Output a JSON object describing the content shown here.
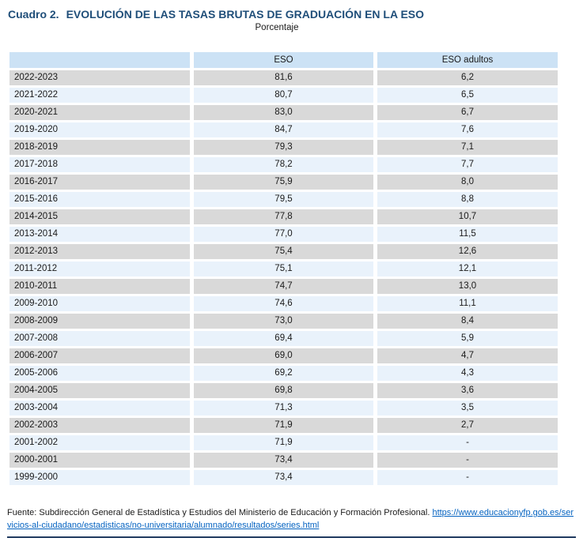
{
  "page": {
    "title_label": "Cuadro 2.",
    "title_text": "EVOLUCIÓN DE LAS TASAS BRUTAS DE GRADUACIÓN EN LA ESO",
    "subtitle": "Porcentaje"
  },
  "table": {
    "headers": [
      "",
      "ESO",
      "ESO adultos"
    ],
    "rows": [
      [
        "2022-2023",
        "81,6",
        "6,2"
      ],
      [
        "2021-2022",
        "80,7",
        "6,5"
      ],
      [
        "2020-2021",
        "83,0",
        "6,7"
      ],
      [
        "2019-2020",
        "84,7",
        "7,6"
      ],
      [
        "2018-2019",
        "79,3",
        "7,1"
      ],
      [
        "2017-2018",
        "78,2",
        "7,7"
      ],
      [
        "2016-2017",
        "75,9",
        "8,0"
      ],
      [
        "2015-2016",
        "79,5",
        "8,8"
      ],
      [
        "2014-2015",
        "77,8",
        "10,7"
      ],
      [
        "2013-2014",
        "77,0",
        "11,5"
      ],
      [
        "2012-2013",
        "75,4",
        "12,6"
      ],
      [
        "2011-2012",
        "75,1",
        "12,1"
      ],
      [
        "2010-2011",
        "74,7",
        "13,0"
      ],
      [
        "2009-2010",
        "74,6",
        "11,1"
      ],
      [
        "2008-2009",
        "73,0",
        "8,4"
      ],
      [
        "2007-2008",
        "69,4",
        "5,9"
      ],
      [
        "2006-2007",
        "69,0",
        "4,7"
      ],
      [
        "2005-2006",
        "69,2",
        "4,3"
      ],
      [
        "2004-2005",
        "69,8",
        "3,6"
      ],
      [
        "2003-2004",
        "71,3",
        "3,5"
      ],
      [
        "2002-2003",
        "71,9",
        "2,7"
      ],
      [
        "2001-2002",
        "71,9",
        "-"
      ],
      [
        "2000-2001",
        "73,4",
        "-"
      ],
      [
        "1999-2000",
        "73,4",
        "-"
      ]
    ]
  },
  "footer": {
    "source_prefix": "Fuente: Subdirección General de Estadística y Estudios del Ministerio de Educación y Formación Profesional. ",
    "source_link": "https://www.educacionyfp.gob.es/servicios-al-ciudadano/estadisticas/no-universitaria/alumnado/resultados/series.html"
  },
  "colors": {
    "title_color": "#1F4E79",
    "text_color": "#1a1a1a",
    "header_bg": "#CCE2F5",
    "row_gray": "#D9D9D9",
    "row_blue": "#E9F2FB",
    "link_color": "#0563C1",
    "rule_color": "#1F3A5F"
  }
}
